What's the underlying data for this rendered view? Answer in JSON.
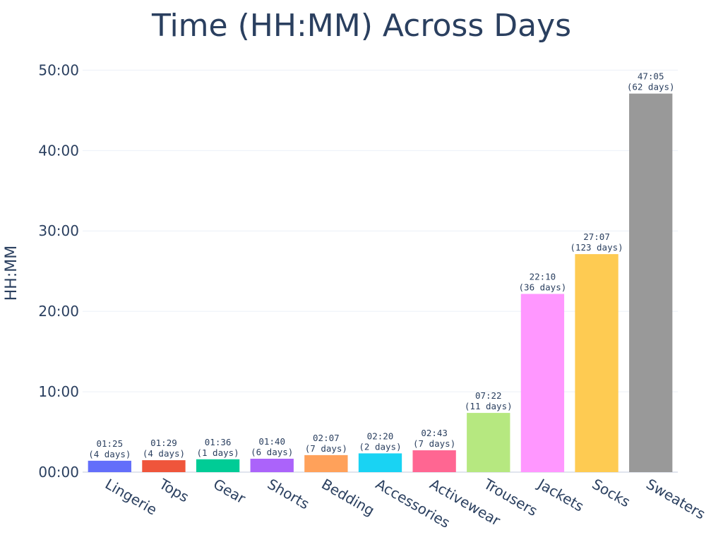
{
  "chart_data": {
    "type": "bar",
    "title": "Time (HH:MM) Across Days",
    "xlabel": "",
    "ylabel": "HH:MM",
    "ylim_minutes": [
      0,
      3060
    ],
    "y_ticks": [
      {
        "label": "00:00",
        "minutes": 0
      },
      {
        "label": "10:00",
        "minutes": 600
      },
      {
        "label": "20:00",
        "minutes": 1200
      },
      {
        "label": "30:00",
        "minutes": 1800
      },
      {
        "label": "40:00",
        "minutes": 2400
      },
      {
        "label": "50:00",
        "minutes": 3000
      }
    ],
    "grid": true,
    "legend": "none",
    "bars": [
      {
        "category": "Lingerie",
        "minutes": 85,
        "time_label": "01:25",
        "days_label": "(4 days)",
        "color": "#636efa"
      },
      {
        "category": "Tops",
        "minutes": 89,
        "time_label": "01:29",
        "days_label": "(4 days)",
        "color": "#ef553b"
      },
      {
        "category": "Gear",
        "minutes": 96,
        "time_label": "01:36",
        "days_label": "(1 days)",
        "color": "#00cc96"
      },
      {
        "category": "Shorts",
        "minutes": 100,
        "time_label": "01:40",
        "days_label": "(6 days)",
        "color": "#ab63fa"
      },
      {
        "category": "Bedding",
        "minutes": 127,
        "time_label": "02:07",
        "days_label": "(7 days)",
        "color": "#ffa15a"
      },
      {
        "category": "Accessories",
        "minutes": 140,
        "time_label": "02:20",
        "days_label": "(2 days)",
        "color": "#19d3f3"
      },
      {
        "category": "Activewear",
        "minutes": 163,
        "time_label": "02:43",
        "days_label": "(7 days)",
        "color": "#ff6692"
      },
      {
        "category": "Trousers",
        "minutes": 442,
        "time_label": "07:22",
        "days_label": "(11 days)",
        "color": "#b6e880"
      },
      {
        "category": "Jackets",
        "minutes": 1330,
        "time_label": "22:10",
        "days_label": "(36 days)",
        "color": "#ff97ff"
      },
      {
        "category": "Socks",
        "minutes": 1627,
        "time_label": "27:07",
        "days_label": "(123 days)",
        "color": "#fecb52"
      },
      {
        "category": "Sweaters",
        "minutes": 2825,
        "time_label": "47:05",
        "days_label": "(62 days)",
        "color": "#999999"
      }
    ]
  }
}
